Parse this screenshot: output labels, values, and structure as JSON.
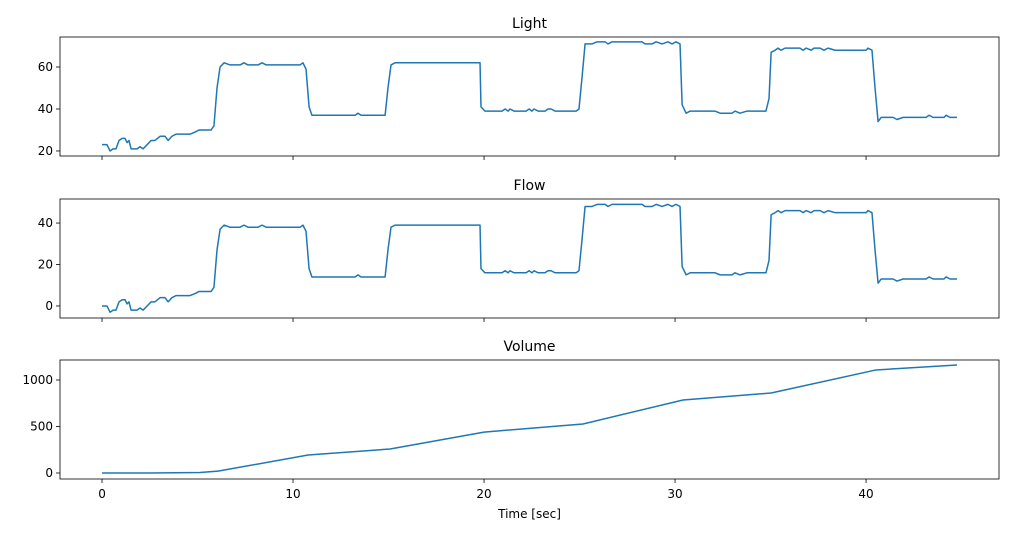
{
  "chart_data": [
    {
      "type": "line",
      "title": "Light",
      "color": "#1f77b4",
      "x": [
        0,
        0.26,
        0.42,
        0.58,
        0.73,
        0.89,
        1.05,
        1.2,
        1.31,
        1.41,
        1.52,
        1.83,
        1.99,
        2.15,
        2.36,
        2.57,
        2.77,
        3.04,
        3.3,
        3.46,
        3.66,
        3.87,
        4.61,
        4.87,
        5.08,
        5.71,
        5.86,
        6.02,
        6.18,
        6.39,
        6.7,
        7.23,
        7.43,
        7.64,
        8.17,
        8.38,
        8.59,
        10.37,
        10.52,
        10.68,
        10.84,
        10.99,
        13.25,
        13.4,
        13.56,
        14.82,
        14.97,
        15.13,
        15.34,
        19.79,
        19.84,
        20.05,
        20.94,
        21.1,
        21.26,
        21.36,
        21.57,
        22.2,
        22.36,
        22.51,
        22.62,
        22.83,
        23.19,
        23.35,
        23.51,
        23.72,
        24.82,
        24.97,
        25.13,
        25.29,
        25.65,
        25.92,
        26.34,
        26.49,
        26.7,
        28.27,
        28.43,
        28.8,
        29.01,
        29.32,
        29.63,
        29.84,
        30.05,
        30.26,
        30.37,
        30.58,
        30.79,
        32.09,
        32.36,
        32.98,
        33.14,
        33.4,
        33.77,
        34.76,
        34.92,
        35.03,
        35.24,
        35.39,
        35.55,
        35.76,
        36.54,
        36.7,
        36.86,
        37.12,
        37.28,
        37.59,
        37.8,
        38.01,
        38.38,
        40.0,
        40.1,
        40.31,
        40.47,
        40.63,
        40.79,
        41.41,
        41.62,
        41.94,
        43.14,
        43.3,
        43.51,
        44.08,
        44.19,
        44.4,
        44.76
      ],
      "values": [
        23,
        23,
        20,
        21,
        21,
        25,
        26,
        26,
        24,
        25,
        21,
        21,
        22,
        21,
        23,
        25,
        25,
        27,
        27,
        25,
        27,
        28,
        28,
        29,
        30,
        30,
        32,
        50,
        60,
        62,
        61,
        61,
        62,
        61,
        61,
        62,
        61,
        61,
        62,
        59,
        41,
        37,
        37,
        38,
        37,
        37,
        50,
        61,
        62,
        62,
        41,
        39,
        39,
        40,
        39,
        40,
        39,
        39,
        40,
        39,
        40,
        39,
        39,
        40,
        40,
        39,
        39,
        40,
        55,
        71,
        71,
        72,
        72,
        71,
        72,
        72,
        71,
        71,
        72,
        71,
        72,
        71,
        72,
        71,
        42,
        38,
        39,
        39,
        38,
        38,
        39,
        38,
        39,
        39,
        45,
        67,
        68,
        69,
        68,
        69,
        69,
        68,
        69,
        68,
        69,
        69,
        68,
        69,
        68,
        68,
        69,
        68,
        50,
        34,
        36,
        36,
        35,
        36,
        36,
        37,
        36,
        36,
        37,
        36,
        36
      ],
      "ylim": [
        17.6,
        74.3
      ],
      "yticks": [
        20,
        40,
        60
      ]
    },
    {
      "type": "line",
      "title": "Flow",
      "color": "#1f77b4",
      "x": [
        0,
        0.26,
        0.42,
        0.58,
        0.73,
        0.89,
        1.05,
        1.2,
        1.31,
        1.41,
        1.52,
        1.83,
        1.99,
        2.15,
        2.36,
        2.57,
        2.77,
        3.04,
        3.3,
        3.46,
        3.66,
        3.87,
        4.61,
        4.87,
        5.08,
        5.71,
        5.86,
        6.02,
        6.18,
        6.39,
        6.7,
        7.23,
        7.43,
        7.64,
        8.17,
        8.38,
        8.59,
        10.37,
        10.52,
        10.68,
        10.84,
        10.99,
        13.25,
        13.4,
        13.56,
        14.82,
        14.97,
        15.13,
        15.34,
        19.79,
        19.84,
        20.05,
        20.94,
        21.1,
        21.26,
        21.36,
        21.57,
        22.2,
        22.36,
        22.51,
        22.62,
        22.83,
        23.19,
        23.35,
        23.51,
        23.72,
        24.82,
        24.97,
        25.13,
        25.29,
        25.65,
        25.92,
        26.34,
        26.49,
        26.7,
        28.27,
        28.43,
        28.8,
        29.01,
        29.32,
        29.63,
        29.84,
        30.05,
        30.26,
        30.37,
        30.58,
        30.79,
        32.09,
        32.36,
        32.98,
        33.14,
        33.4,
        33.77,
        34.76,
        34.92,
        35.03,
        35.24,
        35.39,
        35.55,
        35.76,
        36.54,
        36.7,
        36.86,
        37.12,
        37.28,
        37.59,
        37.8,
        38.01,
        38.38,
        40.0,
        40.1,
        40.31,
        40.47,
        40.63,
        40.79,
        41.41,
        41.62,
        41.94,
        43.14,
        43.3,
        43.51,
        44.08,
        44.19,
        44.4,
        44.76
      ],
      "values": [
        0,
        0,
        -3,
        -2,
        -2,
        2,
        3,
        3,
        1,
        2,
        -2,
        -2,
        -1,
        -2,
        0,
        2,
        2,
        4,
        4,
        2,
        4,
        5,
        5,
        6,
        7,
        7,
        9,
        27,
        37,
        39,
        38,
        38,
        39,
        38,
        38,
        39,
        38,
        38,
        39,
        36,
        18,
        14,
        14,
        15,
        14,
        14,
        27,
        38,
        39,
        39,
        18,
        16,
        16,
        17,
        16,
        17,
        16,
        16,
        17,
        16,
        17,
        16,
        16,
        17,
        17,
        16,
        16,
        17,
        32,
        48,
        48,
        49,
        49,
        48,
        49,
        49,
        48,
        48,
        49,
        48,
        49,
        48,
        49,
        48,
        19,
        15,
        16,
        16,
        15,
        15,
        16,
        15,
        16,
        16,
        22,
        44,
        45,
        46,
        45,
        46,
        46,
        45,
        46,
        45,
        46,
        46,
        45,
        46,
        45,
        45,
        46,
        45,
        27,
        11,
        13,
        13,
        12,
        13,
        13,
        14,
        13,
        13,
        14,
        13,
        13
      ],
      "ylim": [
        -5.8,
        51.6
      ],
      "yticks": [
        0,
        20,
        40
      ]
    },
    {
      "type": "line",
      "title": "Volume",
      "color": "#1f77b4",
      "xlabel": "Time [sec]",
      "x": [
        0,
        2.51,
        5.13,
        6.07,
        10.79,
        15.08,
        20.0,
        25.18,
        30.42,
        35.03,
        40.52,
        44.76
      ],
      "values": [
        0,
        0,
        5,
        20,
        193,
        258,
        440,
        527,
        785,
        860,
        1108,
        1161
      ],
      "ylim": [
        -64.5,
        1215
      ],
      "yticks": [
        0,
        500,
        1000
      ],
      "xlim": [
        -2.2,
        46.96
      ],
      "xticks": [
        0,
        10,
        20,
        30,
        40
      ]
    }
  ]
}
